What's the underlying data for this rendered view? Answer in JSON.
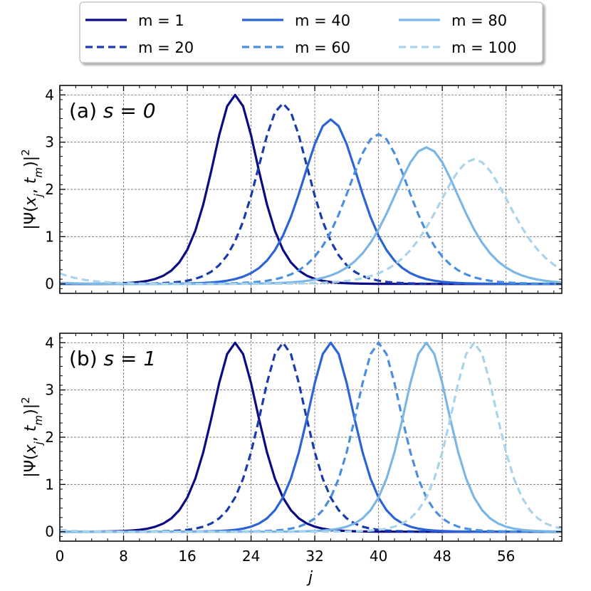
{
  "chart_data": [
    {
      "type": "line",
      "panel_label": "(a)",
      "panel_param": "s = 0",
      "ylabel": "|Ψ(x_j, t_m)|^2",
      "xlabel": "",
      "xlim": [
        0,
        63
      ],
      "ylim": [
        -0.2,
        4.2
      ],
      "xticks": [
        0,
        8,
        16,
        24,
        32,
        40,
        48,
        56
      ],
      "yticks": [
        0,
        1,
        2,
        3,
        4
      ],
      "grid": true,
      "series": [
        {
          "name": "m = 1",
          "color": "#0b0b86",
          "style": "solid",
          "peak_x": 22,
          "peak_y": 4.0,
          "width": 4.0
        },
        {
          "name": "m = 20",
          "color": "#1a3bb0",
          "style": "dashed",
          "peak_x": 28,
          "peak_y": 3.82,
          "width": 4.45
        },
        {
          "name": "m = 40",
          "color": "#2a64d6",
          "style": "solid",
          "peak_x": 34,
          "peak_y": 3.48,
          "width": 4.9
        },
        {
          "name": "m = 60",
          "color": "#4a8ee0",
          "style": "dashed",
          "peak_x": 40,
          "peak_y": 3.17,
          "width": 5.35
        },
        {
          "name": "m = 80",
          "color": "#7bb6e5",
          "style": "solid",
          "peak_x": 46,
          "peak_y": 2.89,
          "width": 5.8
        },
        {
          "name": "m = 100",
          "color": "#a9d3ea",
          "style": "dashed",
          "peak_x": 52,
          "peak_y": 2.64,
          "width": 6.3
        }
      ]
    },
    {
      "type": "line",
      "panel_label": "(b)",
      "panel_param": "s = 1",
      "ylabel": "|Ψ(x_j, t_m)|^2",
      "xlabel": "j",
      "xlim": [
        0,
        63
      ],
      "ylim": [
        -0.2,
        4.2
      ],
      "xticks": [
        0,
        8,
        16,
        24,
        32,
        40,
        48,
        56
      ],
      "yticks": [
        0,
        1,
        2,
        3,
        4
      ],
      "grid": true,
      "series": [
        {
          "name": "m = 1",
          "color": "#0b0b86",
          "style": "solid",
          "peak_x": 22,
          "peak_y": 4.0,
          "width": 4.0
        },
        {
          "name": "m = 20",
          "color": "#1a3bb0",
          "style": "dashed",
          "peak_x": 28,
          "peak_y": 4.0,
          "width": 4.0
        },
        {
          "name": "m = 40",
          "color": "#2a64d6",
          "style": "solid",
          "peak_x": 34,
          "peak_y": 4.0,
          "width": 4.0
        },
        {
          "name": "m = 60",
          "color": "#4a8ee0",
          "style": "dashed",
          "peak_x": 40,
          "peak_y": 4.0,
          "width": 4.0
        },
        {
          "name": "m = 80",
          "color": "#7bb6e5",
          "style": "solid",
          "peak_x": 46,
          "peak_y": 4.0,
          "width": 4.0
        },
        {
          "name": "m = 100",
          "color": "#a9d3ea",
          "style": "dashed",
          "peak_x": 52,
          "peak_y": 4.0,
          "width": 4.0
        }
      ]
    }
  ],
  "legend": {
    "placement": "top",
    "entries": [
      "m = 1",
      "m = 40",
      "m = 80",
      "m = 20",
      "m = 60",
      "m = 100"
    ]
  }
}
